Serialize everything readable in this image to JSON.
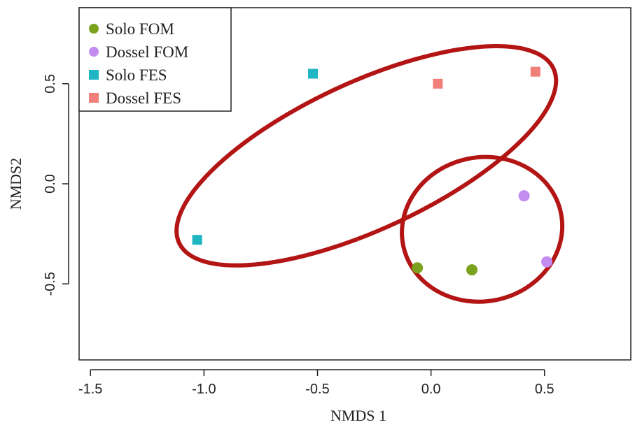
{
  "chart_data": {
    "type": "scatter",
    "xlabel": "NMDS 1",
    "ylabel": "NMDS2",
    "xlim": [
      -1.55,
      0.88
    ],
    "ylim": [
      -0.88,
      0.88
    ],
    "x_ticks": [
      -1.5,
      -1.0,
      -0.5,
      0.0,
      0.5
    ],
    "x_tick_labels": [
      "-1.5",
      "-1.0",
      "-0.5",
      "0.0",
      "0.5"
    ],
    "y_ticks": [
      -0.5,
      0.0,
      0.5
    ],
    "y_tick_labels": [
      "-0.5",
      "0.0",
      "0.5"
    ],
    "grid": false,
    "legend_position": "top-left",
    "series": [
      {
        "name": "Solo FOM",
        "marker": "circle",
        "color": "#7aa21e",
        "points": [
          [
            -0.06,
            -0.42
          ],
          [
            0.18,
            -0.43
          ]
        ]
      },
      {
        "name": "Dossel FOM",
        "marker": "circle",
        "color": "#c28cf0",
        "points": [
          [
            0.41,
            -0.06
          ],
          [
            0.51,
            -0.39
          ]
        ]
      },
      {
        "name": "Solo FES",
        "marker": "square",
        "color": "#1fb5c2",
        "points": [
          [
            -0.52,
            0.55
          ],
          [
            -1.03,
            -0.28
          ]
        ]
      },
      {
        "name": "Dossel FES",
        "marker": "square",
        "color": "#f07f7a",
        "points": [
          [
            0.03,
            0.5
          ],
          [
            0.46,
            0.56
          ]
        ]
      }
    ],
    "annotations": [
      {
        "shape": "ellipse",
        "color": "#b31414",
        "encloses": [
          "Solo FES",
          "Dossel FES"
        ]
      },
      {
        "shape": "ellipse",
        "color": "#b31414",
        "encloses": [
          "Solo FOM",
          "Dossel FOM"
        ]
      }
    ]
  }
}
